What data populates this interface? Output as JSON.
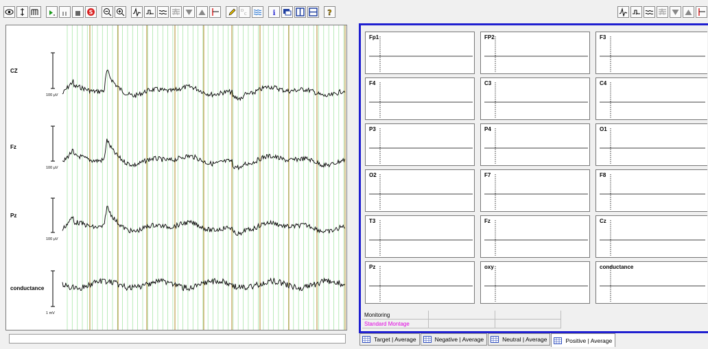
{
  "toolbar_left": [
    {
      "icon": "eye-icon"
    },
    {
      "icon": "single-wave-icon"
    },
    {
      "icon": "multi-wave-icon"
    },
    {
      "icon": "play-icon"
    },
    {
      "icon": "pause-icon"
    },
    {
      "icon": "stop-icon"
    },
    {
      "icon": "record-stop-icon"
    },
    {
      "icon": "zoom-out-icon"
    },
    {
      "icon": "zoom-in-icon"
    },
    {
      "icon": "spike-icon"
    },
    {
      "icon": "filter-step-icon"
    },
    {
      "icon": "approx-wave-icon"
    },
    {
      "icon": "stack-wave-icon"
    },
    {
      "icon": "triangle-down-icon"
    },
    {
      "icon": "triangle-up-icon"
    },
    {
      "icon": "marker-flag-icon"
    },
    {
      "icon": "pen-icon"
    },
    {
      "icon": "dc-icon"
    },
    {
      "icon": "wave-selected-icon"
    },
    {
      "icon": "info-icon"
    },
    {
      "icon": "window-icon"
    },
    {
      "icon": "split-vertical-icon"
    },
    {
      "icon": "split-horizontal-icon"
    },
    {
      "icon": "help-icon"
    }
  ],
  "toolbar_right": [
    {
      "icon": "spike-icon"
    },
    {
      "icon": "filter-step-icon"
    },
    {
      "icon": "approx-wave-icon"
    },
    {
      "icon": "stack-wave-icon"
    },
    {
      "icon": "triangle-down-icon"
    },
    {
      "icon": "triangle-up-icon"
    },
    {
      "icon": "marker-flag-icon"
    }
  ],
  "channels": [
    {
      "label": "CZ",
      "scale": "100 µV"
    },
    {
      "label": "Fz",
      "scale": "100 µV"
    },
    {
      "label": "Pz",
      "scale": "100 µV"
    },
    {
      "label": "conductance",
      "scale": "1 mV"
    }
  ],
  "montage_cells": [
    "Fp1",
    "FP2",
    "F3",
    "F4",
    "C3",
    "C4",
    "P3",
    "P4",
    "O1",
    "O2",
    "F7",
    "F8",
    "T3",
    "Fz",
    "Cz",
    "Pz",
    "oxy",
    "conductance"
  ],
  "info": {
    "monitoring": "Monitoring",
    "montage": "Standard Montage",
    "montage_color": "#e000e0"
  },
  "tabs": [
    {
      "label": "Target | Average",
      "active": false
    },
    {
      "label": "Negative | Average",
      "active": false
    },
    {
      "label": "Neutral | Average",
      "active": false
    },
    {
      "label": "Positive | Average",
      "active": true
    }
  ],
  "colors": {
    "frame_border": "#1f1fd0",
    "grid_minor": "#a8e6a8",
    "grid_major": "#b08a2a"
  }
}
